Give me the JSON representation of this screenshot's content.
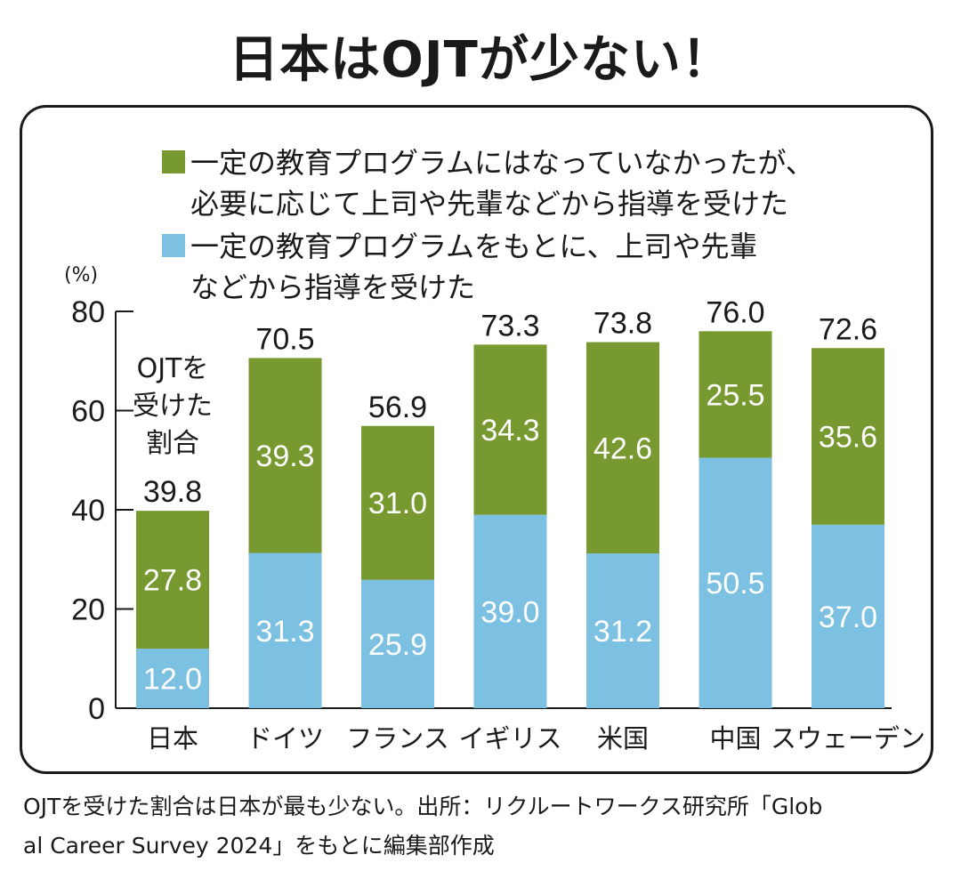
{
  "title": "日本はOJTが少ない！",
  "legend": [
    {
      "label_line1": "一定の教育プログラムにはなっていなかったが、",
      "label_line2": "必要に応じて上司や先輩などから指導を受けた",
      "color": "#77992f"
    },
    {
      "label_line1": "一定の教育プログラムをもとに、上司や先輩",
      "label_line2": "などから指導を受けた",
      "color": "#7cc0e2"
    }
  ],
  "caption_line1": "OJTを受けた割合は日本が最も少ない。出所：リクルートワークス研究所「Glob",
  "caption_line2": "al Career Survey 2024」をもとに編集部作成",
  "chart_data": {
    "type": "bar",
    "stacked": true,
    "title": "日本はOJTが少ない！",
    "ylabel": "(%)",
    "xlabel": "",
    "ylim": [
      0,
      80
    ],
    "yticks": [
      0,
      20,
      40,
      60,
      80
    ],
    "categories": [
      "日本",
      "ドイツ",
      "フランス",
      "イギリス",
      "米国",
      "中国",
      "スウェーデン"
    ],
    "series": [
      {
        "name": "一定の教育プログラムをもとに、上司や先輩などから指導を受けた",
        "color": "#7cc0e2",
        "values": [
          12.0,
          31.3,
          25.9,
          39.0,
          31.2,
          50.5,
          37.0
        ]
      },
      {
        "name": "一定の教育プログラムにはなっていなかったが、必要に応じて上司や先輩などから指導を受けた",
        "color": "#77992f",
        "values": [
          27.8,
          39.3,
          31.0,
          34.3,
          42.6,
          25.5,
          35.6
        ]
      }
    ],
    "totals": [
      "39.8",
      "70.5",
      "56.9",
      "73.3",
      "73.8",
      "76.0",
      "72.6"
    ],
    "series_labels": [
      [
        "12.0",
        "31.3",
        "25.9",
        "39.0",
        "31.2",
        "50.5",
        "37.0"
      ],
      [
        "27.8",
        "39.3",
        "31.0",
        "34.3",
        "42.6",
        "25.5",
        "35.6"
      ]
    ],
    "annotation_lines": [
      "OJTを",
      "受けた",
      "割合"
    ],
    "legend_position": "top"
  }
}
